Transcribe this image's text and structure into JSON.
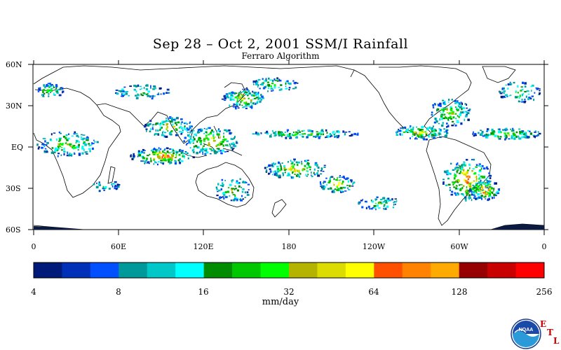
{
  "title": "Sep 28 – Oct 2, 2001 SSM/I Rainfall",
  "subtitle": "Ferraro Algorithm",
  "lat_labels": [
    "60N",
    "30N",
    "EQ",
    "30S",
    "60S"
  ],
  "lon_labels": [
    "0",
    "60E",
    "120E",
    "180",
    "120W",
    "60W",
    "0"
  ],
  "colorbar": {
    "ticks": [
      "4",
      "8",
      "16",
      "32",
      "64",
      "128",
      "256"
    ],
    "units": "mm/day",
    "colors": [
      "#001a7a",
      "#0030b8",
      "#0050ff",
      "#009999",
      "#00c8c8",
      "#00ffff",
      "#008c00",
      "#00c800",
      "#00ff00",
      "#b4b400",
      "#dcdc00",
      "#ffff00",
      "#ff5000",
      "#ff8200",
      "#ffaa00",
      "#960000",
      "#c80000",
      "#ff0000"
    ]
  },
  "logo": {
    "name": "NOAA",
    "letters": [
      "E",
      "T",
      "L"
    ]
  }
}
